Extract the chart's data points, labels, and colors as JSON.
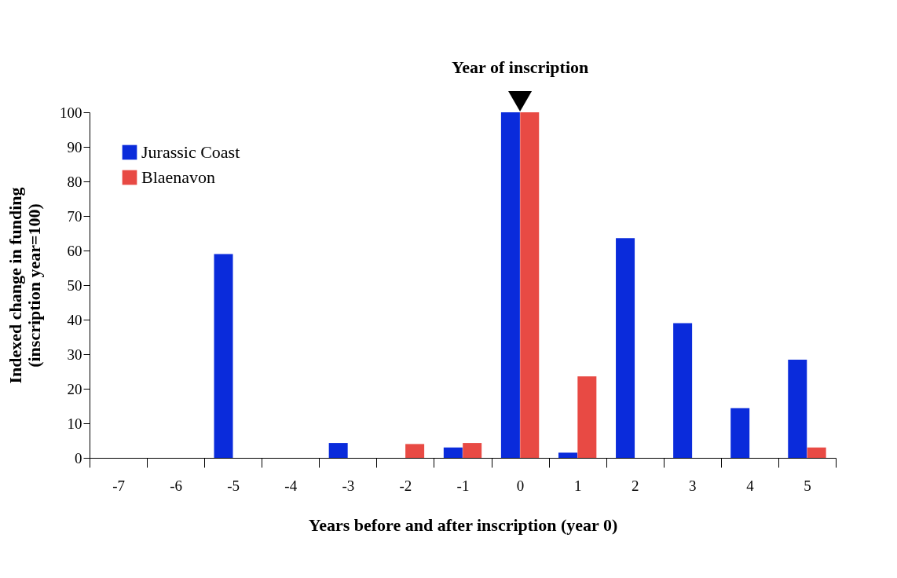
{
  "chart_data": {
    "type": "bar",
    "xlabel": "Years before and after inscription (year 0)",
    "ylabel": "Indexed change in funding\n(inscription year=100)",
    "categories": [
      "-7",
      "-6",
      "-5",
      "-4",
      "-3",
      "-2",
      "-1",
      "0",
      "1",
      "2",
      "3",
      "4",
      "5"
    ],
    "series": [
      {
        "name": "Jurassic Coast",
        "color": "#0a2bdb",
        "values": [
          0,
          0,
          59,
          0,
          4.3,
          0,
          3,
          100,
          1.5,
          63.6,
          39,
          14.4,
          28.4
        ]
      },
      {
        "name": "Blaenavon",
        "color": "#e84a44",
        "values": [
          0,
          0,
          0,
          0,
          0,
          4,
          4.3,
          100,
          23.6,
          0,
          0,
          0,
          3
        ]
      }
    ],
    "ylim": [
      0,
      100
    ],
    "yticks": [
      0,
      10,
      20,
      30,
      40,
      50,
      60,
      70,
      80,
      90,
      100
    ],
    "annotations": [
      {
        "text": "Year of inscription",
        "x": "0",
        "y": 100
      }
    ],
    "grid": false,
    "legend": "top left"
  }
}
